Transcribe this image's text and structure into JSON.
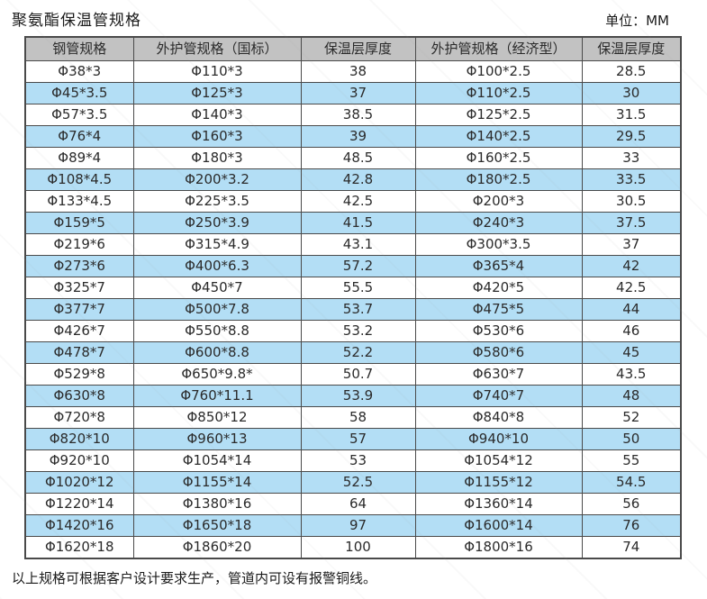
{
  "page": {
    "title": "聚氨酯保温管规格",
    "unit_label": "单位：MM",
    "footer_note": "以上规格可根据客户设计要求生产，管道内可设有报警铜线。"
  },
  "colors": {
    "header_bg": "#c2c2c2",
    "row_alt_bg": "#b3def5",
    "row_bg": "#ffffff",
    "border": "#4a4a4a"
  },
  "table": {
    "columns": [
      "钢管规格",
      "外护管规格（国标）",
      "保温层厚度",
      "外护管规格（经济型）",
      "保温层厚度"
    ],
    "rows": [
      [
        "Φ38*3",
        "Φ110*3",
        "38",
        "Φ100*2.5",
        "28.5"
      ],
      [
        "Φ45*3.5",
        "Φ125*3",
        "37",
        "Φ110*2.5",
        "30"
      ],
      [
        "Φ57*3.5",
        "Φ140*3",
        "38.5",
        "Φ125*2.5",
        "31.5"
      ],
      [
        "Φ76*4",
        "Φ160*3",
        "39",
        "Φ140*2.5",
        "29.5"
      ],
      [
        "Φ89*4",
        "Φ180*3",
        "48.5",
        "Φ160*2.5",
        "33"
      ],
      [
        "Φ108*4.5",
        "Φ200*3.2",
        "42.8",
        "Φ180*2.5",
        "33.5"
      ],
      [
        "Φ133*4.5",
        "Φ225*3.5",
        "42.5",
        "Φ200*3",
        "30.5"
      ],
      [
        "Φ159*5",
        "Φ250*3.9",
        "41.5",
        "Φ240*3",
        "37.5"
      ],
      [
        "Φ219*6",
        "Φ315*4.9",
        "43.1",
        "Φ300*3.5",
        "37"
      ],
      [
        "Φ273*6",
        "Φ400*6.3",
        "57.2",
        "Φ365*4",
        "42"
      ],
      [
        "Φ325*7",
        "Φ450*7",
        "55.5",
        "Φ420*5",
        "42.5"
      ],
      [
        "Φ377*7",
        "Φ500*7.8",
        "53.7",
        "Φ475*5",
        "44"
      ],
      [
        "Φ426*7",
        "Φ550*8.8",
        "53.2",
        "Φ530*6",
        "46"
      ],
      [
        "Φ478*7",
        "Φ600*8.8",
        "52.2",
        "Φ580*6",
        "45"
      ],
      [
        "Φ529*8",
        "Φ650*9.8*",
        "50.7",
        "Φ630*7",
        "43.5"
      ],
      [
        "Φ630*8",
        "Φ760*11.1",
        "53.9",
        "Φ740*7",
        "48"
      ],
      [
        "Φ720*8",
        "Φ850*12",
        "58",
        "Φ840*8",
        "52"
      ],
      [
        "Φ820*10",
        "Φ960*13",
        "57",
        "Φ940*10",
        "50"
      ],
      [
        "Φ920*10",
        "Φ1054*14",
        "53",
        "Φ1054*12",
        "55"
      ],
      [
        "Φ1020*12",
        "Φ1155*14",
        "52.5",
        "Φ1155*12",
        "54.5"
      ],
      [
        "Φ1220*14",
        "Φ1380*16",
        "64",
        "Φ1360*14",
        "56"
      ],
      [
        "Φ1420*16",
        "Φ1650*18",
        "97",
        "Φ1600*14",
        "76"
      ],
      [
        "Φ1620*18",
        "Φ1860*20",
        "100",
        "Φ1800*16",
        "74"
      ]
    ]
  }
}
